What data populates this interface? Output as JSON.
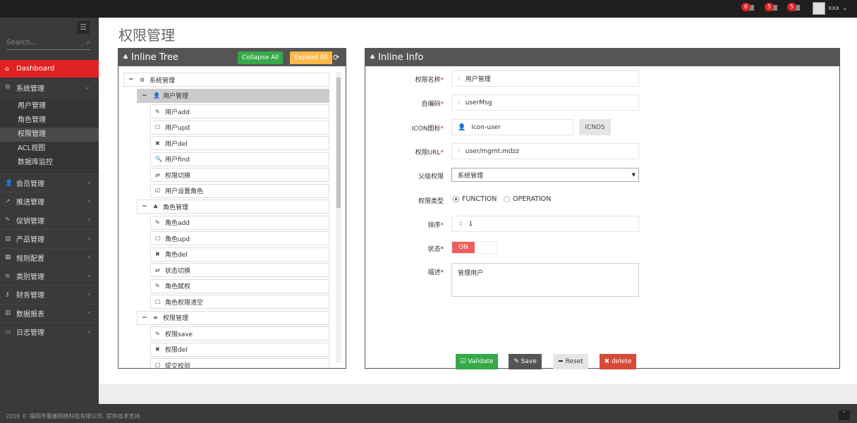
{
  "topbar": {
    "notifications": [
      {
        "count": "6",
        "icon": "bell-icon"
      },
      {
        "count": "5",
        "icon": "envelope-icon"
      },
      {
        "count": "5",
        "icon": "tasks-icon"
      }
    ],
    "username": "xxx"
  },
  "sidebar": {
    "search_placeholder": "Search...",
    "items": [
      {
        "label": "Dashboard",
        "icon": "home-icon",
        "active": true
      },
      {
        "label": "系统管理",
        "icon": "cogs-icon",
        "expanded": true
      }
    ],
    "subitems": [
      {
        "label": "用户管理"
      },
      {
        "label": "角色管理"
      },
      {
        "label": "权限管理",
        "active": true
      },
      {
        "label": "ACL视图"
      },
      {
        "label": "数据库监控"
      }
    ],
    "groups": [
      {
        "label": "会员管理",
        "icon": "user-icon"
      },
      {
        "label": "推送管理",
        "icon": "share-icon"
      },
      {
        "label": "促销管理",
        "icon": "pencil-icon"
      },
      {
        "label": "产品管理",
        "icon": "inbox-icon"
      },
      {
        "label": "规则配置",
        "icon": "list-alt-icon"
      },
      {
        "label": "类别管理",
        "icon": "reorder-icon"
      },
      {
        "label": "财务管理",
        "icon": "key-icon"
      },
      {
        "label": "数据报表",
        "icon": "bar-chart-icon"
      },
      {
        "label": "日志管理",
        "icon": "credit-card-icon"
      }
    ]
  },
  "page": {
    "title": "权限管理"
  },
  "tree": {
    "title": "Inline Tree",
    "collapse_label": "Collapse All",
    "expand_label": "Expand All",
    "nodes": [
      {
        "level": 0,
        "toggle": "−",
        "icon": "⚙",
        "label": "系统管理"
      },
      {
        "level": 1,
        "toggle": "−",
        "icon": "👤",
        "label": "用户管理",
        "selected": true
      },
      {
        "level": 2,
        "icon": "✎",
        "label": "用户add"
      },
      {
        "level": 2,
        "icon": "☐",
        "label": "用户upd"
      },
      {
        "level": 2,
        "icon": "✖",
        "label": "用户del"
      },
      {
        "level": 2,
        "icon": "🔍",
        "label": "用户find"
      },
      {
        "level": 2,
        "icon": "⇄",
        "label": "权限切换"
      },
      {
        "level": 2,
        "icon": "☑",
        "label": "用户设置角色"
      },
      {
        "level": 1,
        "toggle": "−",
        "icon": "♣",
        "label": "角色管理"
      },
      {
        "level": 2,
        "icon": "✎",
        "label": "角色add"
      },
      {
        "level": 2,
        "icon": "☐",
        "label": "角色upd"
      },
      {
        "level": 2,
        "icon": "✖",
        "label": "角色del"
      },
      {
        "level": 2,
        "icon": "⇄",
        "label": "状态切换"
      },
      {
        "level": 2,
        "icon": "✎",
        "label": "角色赋权"
      },
      {
        "level": 2,
        "icon": "☐",
        "label": "角色权限清空"
      },
      {
        "level": 1,
        "toggle": "−",
        "icon": "≡",
        "label": "权限管理"
      },
      {
        "level": 2,
        "icon": "✎",
        "label": "权限save"
      },
      {
        "level": 2,
        "icon": "✖",
        "label": "权限del"
      },
      {
        "level": 2,
        "icon": "☐",
        "label": "提交校验"
      }
    ]
  },
  "info": {
    "title": "Inline Info",
    "name_label": "权限名称",
    "name_value": "用户管理",
    "code_label": "自编码",
    "code_value": "userMsg",
    "icon_label": "ICON图标",
    "icon_value": "icon-user",
    "icons_button": "ICNOS",
    "url_label": "权限URL",
    "url_value": "user/mgmt.mdzz",
    "parent_label": "父级权限",
    "parent_value": "系统管理",
    "type_label": "权限类型",
    "type_options": [
      "FUNCTION",
      "OPERATION"
    ],
    "type_selected": "FUNCTION",
    "order_label": "排序",
    "order_value": "1",
    "status_label": "状态",
    "status_value": "ON",
    "desc_label": "描述",
    "desc_value": "管理用户",
    "validate": "Validate",
    "save": "Save",
    "reset": "Reset",
    "delete": "delete"
  },
  "colors": {
    "accent": "#e02222",
    "green": "#35aa47",
    "orange": "#ffb848",
    "gray_btn": "#555555",
    "danger": "#d84a38"
  },
  "footer": {
    "text": "2016 © 揭阳市蜜蜂网络科技有限公司. 提供技术支持."
  }
}
